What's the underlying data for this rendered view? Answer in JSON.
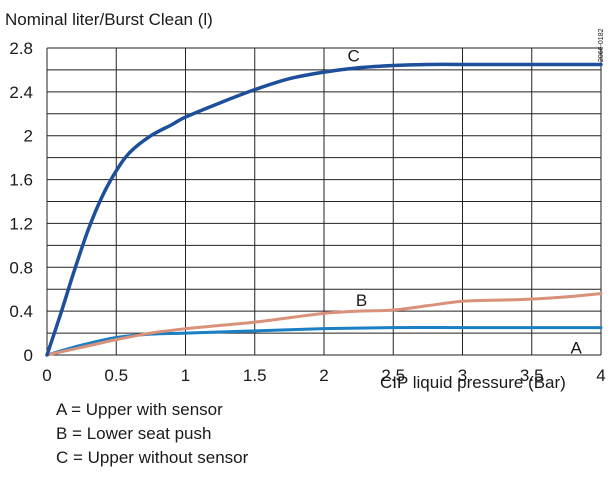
{
  "chart_data": {
    "type": "line",
    "title": "Nominal liter/Burst Clean (l)",
    "xlabel": "CIP liquid pressure (Bar)",
    "ylabel": "",
    "xlim": [
      0,
      4
    ],
    "ylim": [
      0,
      2.8
    ],
    "x_ticks": [
      "0",
      "0.5",
      "1",
      "1.5",
      "2",
      "2.5",
      "3",
      "3.5",
      "4"
    ],
    "y_ticks": [
      "0",
      "0.4",
      "0.8",
      "1.2",
      "1.6",
      "2",
      "2.4",
      "2.8"
    ],
    "grid": true,
    "figure_code": "2066-0182",
    "series": [
      {
        "name": "A",
        "color": "#1b7fc4",
        "x": [
          0,
          0.25,
          0.5,
          0.75,
          1,
          1.5,
          2,
          2.5,
          3,
          3.5,
          4
        ],
        "y": [
          0,
          0.09,
          0.16,
          0.19,
          0.2,
          0.22,
          0.24,
          0.25,
          0.25,
          0.25,
          0.25
        ]
      },
      {
        "name": "B",
        "color": "#d9917a",
        "x": [
          0,
          0.25,
          0.5,
          0.75,
          1,
          1.25,
          1.5,
          1.75,
          2,
          2.25,
          2.5,
          2.75,
          3,
          3.25,
          3.5,
          3.75,
          4
        ],
        "y": [
          0,
          0.07,
          0.14,
          0.2,
          0.24,
          0.27,
          0.3,
          0.34,
          0.38,
          0.4,
          0.41,
          0.45,
          0.49,
          0.5,
          0.51,
          0.53,
          0.56
        ]
      },
      {
        "name": "C",
        "color": "#1d4f9a",
        "x": [
          0,
          0.1,
          0.2,
          0.3,
          0.4,
          0.5,
          0.6,
          0.75,
          0.9,
          1,
          1.25,
          1.5,
          1.75,
          2,
          2.25,
          2.5,
          2.75,
          3,
          3.5,
          4
        ],
        "y": [
          0,
          0.38,
          0.78,
          1.15,
          1.45,
          1.68,
          1.85,
          2.0,
          2.1,
          2.17,
          2.3,
          2.42,
          2.52,
          2.58,
          2.62,
          2.64,
          2.65,
          2.65,
          2.65,
          2.65
        ]
      }
    ],
    "annotations": [
      {
        "text": "C",
        "series": "C",
        "x": 2.17,
        "y": 2.73
      },
      {
        "text": "B",
        "series": "B",
        "x": 2.23,
        "y": 0.5
      },
      {
        "text": "A",
        "series": "A",
        "x": 3.78,
        "y": 0.07
      }
    ],
    "legend": [
      "A = Upper with sensor",
      "B = Lower seat push",
      "C = Upper without sensor"
    ]
  }
}
